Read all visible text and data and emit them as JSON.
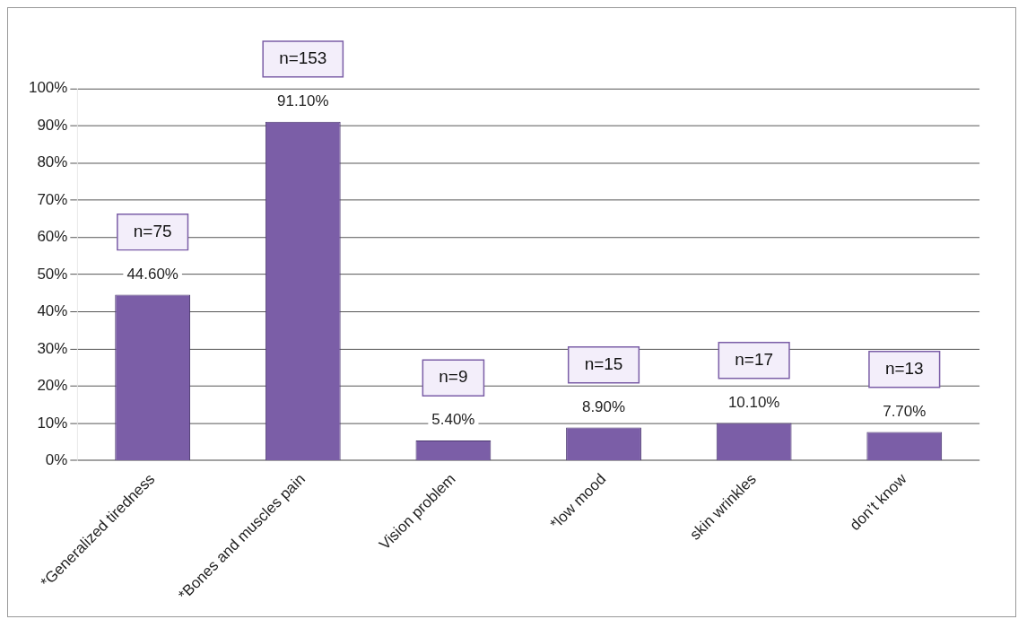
{
  "chart_data": {
    "type": "bar",
    "categories": [
      "*Generalized tiredness",
      "*Bones and muscles pain",
      "Vision problem",
      "*low mood",
      "skin wrinkles",
      "don’t know"
    ],
    "values": [
      44.6,
      91.1,
      5.4,
      8.9,
      10.1,
      7.7
    ],
    "color": "#7b5ea7",
    "value_labels": [
      "44.60%",
      "91.10%",
      "5.40%",
      "8.90%",
      "10.10%",
      "7.70%"
    ],
    "annotations": [
      "n=75",
      "n=153",
      "n=9",
      "n=15",
      "n=17",
      "n=13"
    ],
    "ylim": [
      0,
      100
    ],
    "yticks": [
      {
        "value": 0,
        "label": "0%"
      },
      {
        "value": 10,
        "label": "10%"
      },
      {
        "value": 20,
        "label": "20%"
      },
      {
        "value": 30,
        "label": "30%"
      },
      {
        "value": 40,
        "label": "40%"
      },
      {
        "value": 50,
        "label": "50%"
      },
      {
        "value": 60,
        "label": "60%"
      },
      {
        "value": 70,
        "label": "70%"
      },
      {
        "value": 80,
        "label": "80%"
      },
      {
        "value": 90,
        "label": "90%"
      },
      {
        "value": 100,
        "label": "100%"
      }
    ],
    "grid": "y",
    "legend": false
  }
}
